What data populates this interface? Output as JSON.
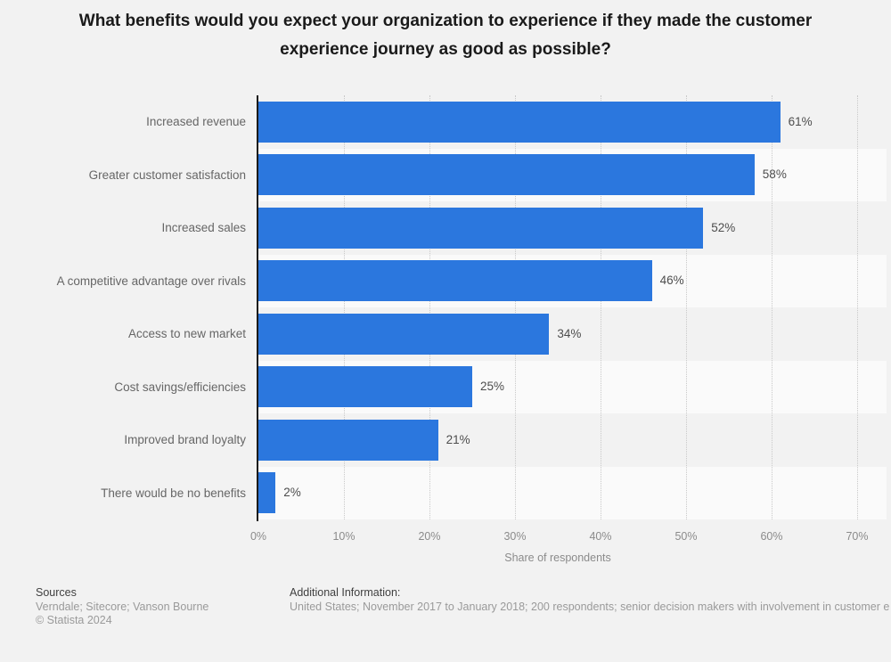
{
  "title": "What benefits would you expect your organization to experience if they made the customer experience journey as good as possible?",
  "theme": {
    "bar_color": "#2b77de",
    "page_background": "#f2f2f2",
    "alt_row_background": "#fafafa",
    "axis_line_color": "#1a1a1a"
  },
  "chart_data": {
    "type": "bar",
    "orientation": "horizontal",
    "categories": [
      "Increased revenue",
      "Greater customer satisfaction",
      "Increased sales",
      "A competitive advantage over rivals",
      "Access to new market",
      "Cost savings/efficiencies",
      "Improved brand loyalty",
      "There would be no benefits"
    ],
    "values": [
      61,
      58,
      52,
      46,
      34,
      25,
      21,
      2
    ],
    "display_values": [
      "61%",
      "58%",
      "52%",
      "46%",
      "34%",
      "25%",
      "21%",
      "2%"
    ],
    "unit": "%",
    "title": "What benefits would you expect your organization to experience if they made the customer experience journey as good as possible?",
    "xlabel": "Share of respondents",
    "ylabel": "",
    "xlim": [
      0,
      70
    ],
    "xticks": [
      "0%",
      "10%",
      "20%",
      "30%",
      "40%",
      "50%",
      "60%",
      "70%"
    ],
    "grid": "vertical-dotted",
    "legend": "none"
  },
  "footer": {
    "sources_label": "Sources",
    "sources_text": "Verndale; Sitecore; Vanson Bourne",
    "copyright": "© Statista 2024",
    "additional_label": "Additional Information:",
    "additional_text": "United States; November 2017 to January 2018; 200 respondents; senior decision makers with involvement in customer e"
  }
}
